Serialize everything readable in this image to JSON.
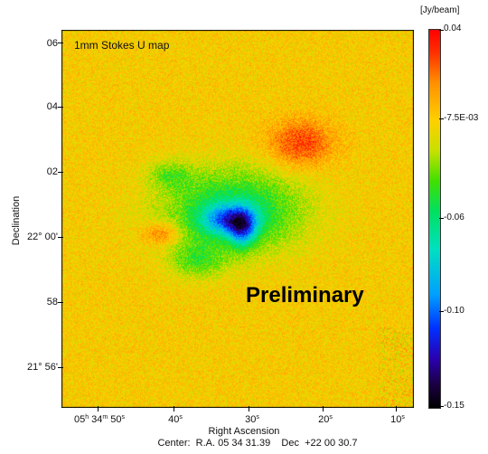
{
  "image": {
    "description_free": true,
    "map_title": "1mm Stokes U map",
    "watermark_text": "Preliminary",
    "y_axis": {
      "label": "Declination",
      "ticks": [
        "06",
        "04",
        "02",
        "22° 00'",
        "58",
        "21° 56'"
      ]
    },
    "x_axis": {
      "label": "Right Ascension",
      "ticks": [
        {
          "main": "05",
          "h": "h",
          "m_val": " 34",
          "m": "m",
          "s_val": " 50",
          "s": "s"
        },
        {
          "main": "40",
          "s": "s"
        },
        {
          "main": "30",
          "s": "s"
        },
        {
          "main": "20",
          "s": "s"
        },
        {
          "main": "10",
          "s": "s"
        }
      ]
    },
    "center_text": "Center:  R.A. 05 34 31.39    Dec  +22 00 30.7",
    "colorbar": {
      "unit": "[Jy/beam]",
      "ticks": [
        "0.04",
        "-7.5E-03",
        "-0.06",
        "-0.10",
        "-0.15"
      ]
    }
  }
}
